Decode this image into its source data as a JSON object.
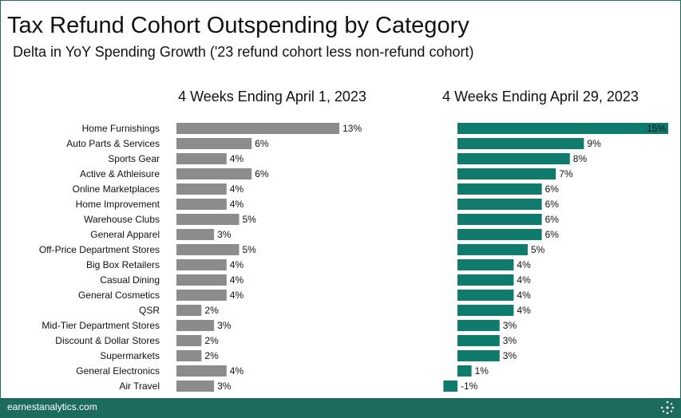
{
  "header": {
    "title": "Tax Refund Cohort Outspending by Category",
    "subtitle": "Delta in YoY Spending Growth ('23 refund cohort less non-refund cohort)"
  },
  "footer": {
    "brand": "earnestanalytics.com",
    "logo_icon": "earnest-logo-icon"
  },
  "colors": {
    "panel1_bar": "#8c8c8c",
    "panel2_bar": "#0e7b6c",
    "frame": "#1c6b5c"
  },
  "chart_data": {
    "type": "bar",
    "orientation": "horizontal",
    "categories": [
      "Home Furnishings",
      "Auto Parts & Services",
      "Sports Gear",
      "Active & Athleisure",
      "Online Marketplaces",
      "Home Improvement",
      "Warehouse Clubs",
      "General Apparel",
      "Off-Price Department Stores",
      "Big Box Retailers",
      "Casual Dining",
      "General Cosmetics",
      "QSR",
      "Mid-Tier Department Stores",
      "Discount & Dollar Stores",
      "Supermarkets",
      "General Electronics",
      "Air Travel"
    ],
    "panels": [
      {
        "title": "4 Weeks Ending April 1, 2023",
        "values": [
          0.13,
          0.06,
          0.04,
          0.06,
          0.04,
          0.04,
          0.05,
          0.03,
          0.05,
          0.04,
          0.04,
          0.04,
          0.02,
          0.03,
          0.02,
          0.02,
          0.04,
          0.03
        ],
        "labels": [
          "13%",
          "6%",
          "4%",
          "6%",
          "4%",
          "4%",
          "5%",
          "3%",
          "5%",
          "4%",
          "4%",
          "4%",
          "2%",
          "3%",
          "2%",
          "2%",
          "4%",
          "3%"
        ]
      },
      {
        "title": "4 Weeks Ending April 29, 2023",
        "values": [
          0.15,
          0.09,
          0.08,
          0.07,
          0.06,
          0.06,
          0.06,
          0.06,
          0.05,
          0.04,
          0.04,
          0.04,
          0.04,
          0.03,
          0.03,
          0.03,
          0.01,
          -0.01
        ],
        "labels": [
          "15%",
          "9%",
          "8%",
          "7%",
          "6%",
          "6%",
          "6%",
          "6%",
          "5%",
          "4%",
          "4%",
          "4%",
          "4%",
          "3%",
          "3%",
          "3%",
          "1%",
          "-1%"
        ]
      }
    ],
    "grid": false,
    "legend": "none"
  }
}
